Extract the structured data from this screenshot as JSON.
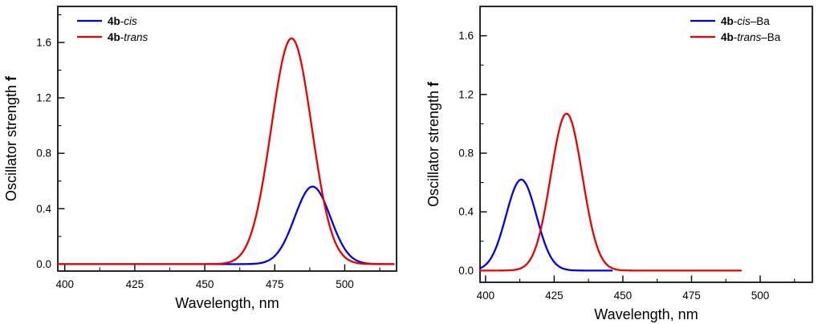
{
  "figure": {
    "background": "#ffffff",
    "text_color": "#000000",
    "frame_color": "#000000"
  },
  "chart_data": [
    {
      "type": "line",
      "title": "",
      "xlabel": "Wavelength, nm",
      "ylabel": "Oscillator strength f",
      "ylabel_parts": [
        {
          "text": "Oscillator strength "
        },
        {
          "text": "f",
          "bold": true
        }
      ],
      "xlim": [
        397.5,
        518.5
      ],
      "ylim": [
        -0.05,
        1.86
      ],
      "xticks": [
        400,
        425,
        450,
        475,
        500
      ],
      "yticks": [
        0.0,
        0.4,
        0.8,
        1.2,
        1.6
      ],
      "x_minor_step": 12.5,
      "y_minor_step": 0.2,
      "grid": false,
      "legend_position": "top-left",
      "series": [
        {
          "label": "4b-cis",
          "label_parts": [
            {
              "text": "4b",
              "bold": true
            },
            {
              "text": "-"
            },
            {
              "text": "cis",
              "italic": true
            }
          ],
          "color": "#0000EE",
          "shape": "gaussian",
          "peak_wavelength_nm": 488.5,
          "max_oscillator_strength": 0.56,
          "fwhm_nm": 15,
          "baseline": 0.0,
          "x_start": 397.5,
          "x_end": 517.5
        },
        {
          "label": "4b-trans",
          "label_parts": [
            {
              "text": "4b",
              "bold": true
            },
            {
              "text": "-"
            },
            {
              "text": "trans",
              "italic": true
            }
          ],
          "color": "#EE0000",
          "shape": "gaussian",
          "peak_wavelength_nm": 481,
          "max_oscillator_strength": 1.63,
          "fwhm_nm": 17,
          "baseline": 0.0,
          "x_start": 397.5,
          "x_end": 517.5
        }
      ]
    },
    {
      "type": "line",
      "title": "",
      "xlabel": "Wavelength, nm",
      "ylabel": "Oscillator strength f",
      "ylabel_parts": [
        {
          "text": "Oscillator strength "
        },
        {
          "text": "f",
          "bold": true
        }
      ],
      "xlim": [
        398,
        519
      ],
      "ylim": [
        -0.08,
        1.8
      ],
      "xticks": [
        400,
        425,
        450,
        475,
        500
      ],
      "yticks": [
        0.0,
        0.4,
        0.8,
        1.2,
        1.6
      ],
      "x_minor_step": 12.5,
      "y_minor_step": 0.2,
      "grid": false,
      "legend_position": "top-right",
      "series": [
        {
          "label": "4b-cis–Ba",
          "label_parts": [
            {
              "text": "4b",
              "bold": true
            },
            {
              "text": "-"
            },
            {
              "text": "cis",
              "italic": true
            },
            {
              "text": "–Ba"
            }
          ],
          "color": "#0000EE",
          "shape": "gaussian",
          "peak_wavelength_nm": 413,
          "max_oscillator_strength": 0.62,
          "fwhm_nm": 13,
          "baseline": 0.0,
          "x_start": 398,
          "x_end": 446
        },
        {
          "label": "4b-trans–Ba",
          "label_parts": [
            {
              "text": "4b",
              "bold": true
            },
            {
              "text": "-"
            },
            {
              "text": "trans",
              "italic": true
            },
            {
              "text": "–Ba"
            }
          ],
          "color": "#EE0000",
          "shape": "gaussian",
          "peak_wavelength_nm": 429.5,
          "max_oscillator_strength": 1.07,
          "fwhm_nm": 13.5,
          "baseline": 0.0,
          "x_start": 398,
          "x_end": 493
        }
      ]
    }
  ]
}
